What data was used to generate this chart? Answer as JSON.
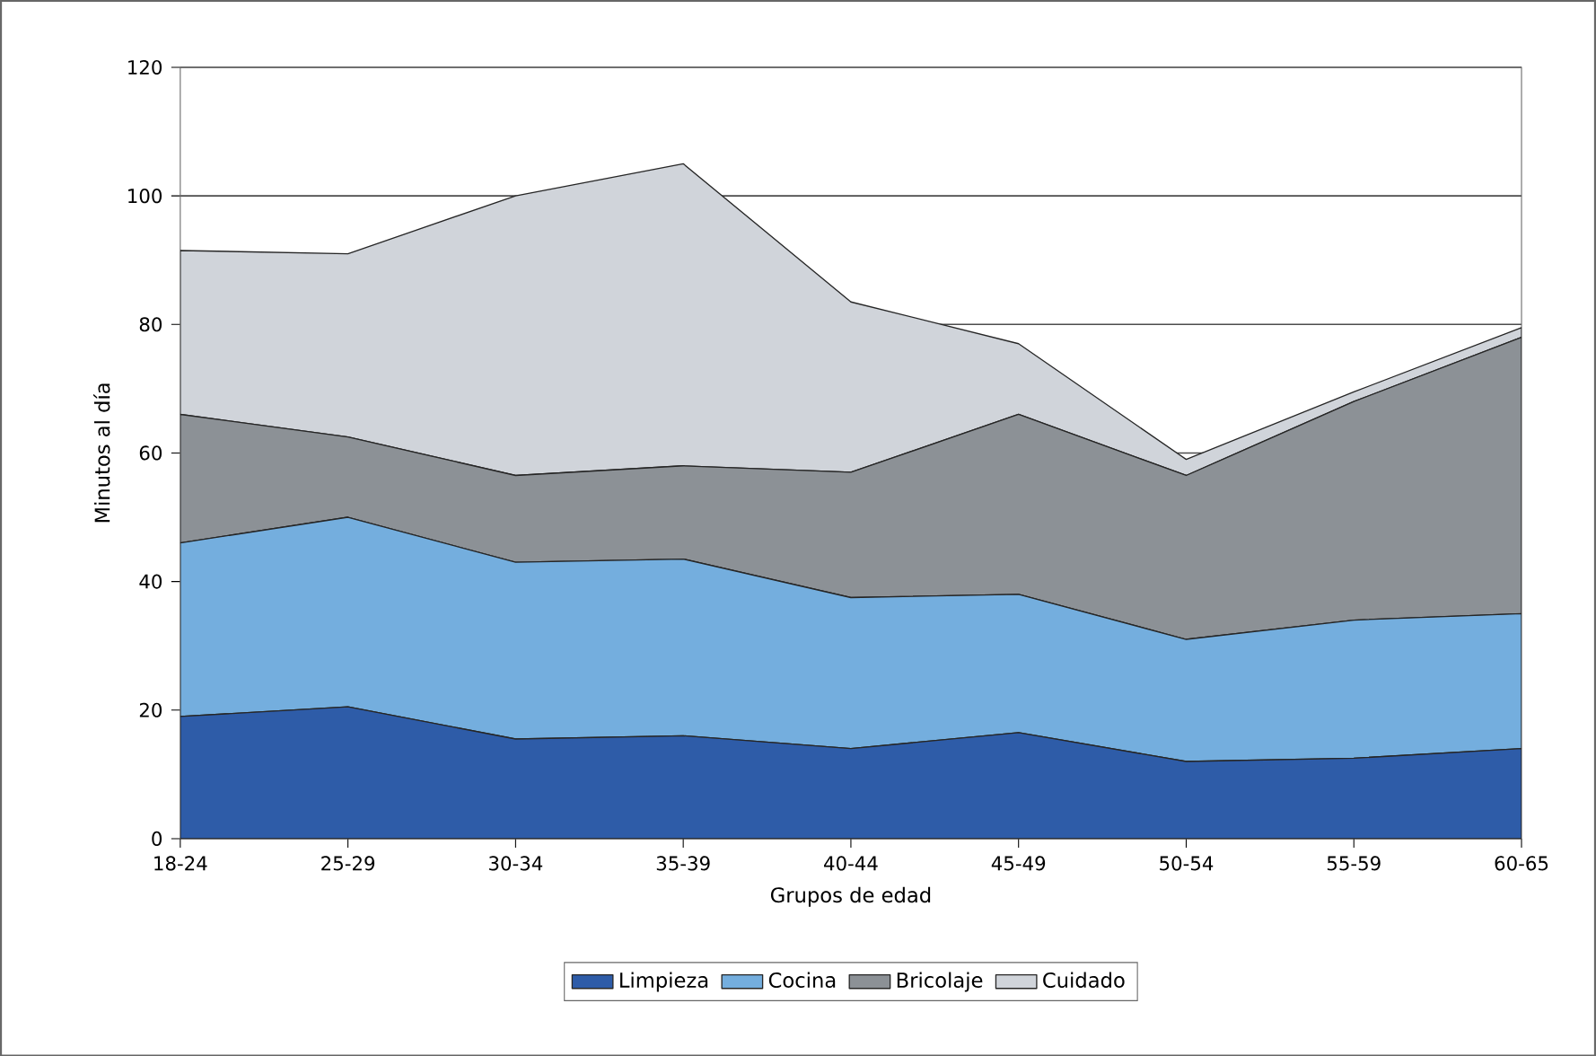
{
  "chart_data": {
    "type": "area",
    "stacked": true,
    "xlabel": "Grupos de edad",
    "ylabel": "Minutos al día",
    "categories": [
      "18-24",
      "25-29",
      "30-34",
      "35-39",
      "40-44",
      "45-49",
      "50-54",
      "55-59",
      "60-65"
    ],
    "ylim": [
      0,
      120
    ],
    "yticks": [
      0,
      20,
      40,
      60,
      80,
      100,
      120
    ],
    "grid": "y",
    "legend": "bottom",
    "series": [
      {
        "name": "Limpieza",
        "color": "#2e5ca8",
        "values": [
          19,
          20.5,
          15.5,
          16,
          14,
          16.5,
          12,
          12.5,
          14
        ]
      },
      {
        "name": "Cocina",
        "color": "#74aede",
        "values": [
          27,
          29.5,
          27.5,
          27.5,
          23.5,
          21.5,
          19,
          21.5,
          21
        ]
      },
      {
        "name": "Bricolaje",
        "color": "#8c9196",
        "values": [
          20,
          12.5,
          13.5,
          14.5,
          19.5,
          28,
          25.5,
          34,
          43
        ]
      },
      {
        "name": "Cuidado",
        "color": "#d0d4da",
        "values": [
          25.5,
          28.5,
          43.5,
          47,
          26.5,
          11,
          2.5,
          1.5,
          1.5
        ]
      }
    ]
  }
}
